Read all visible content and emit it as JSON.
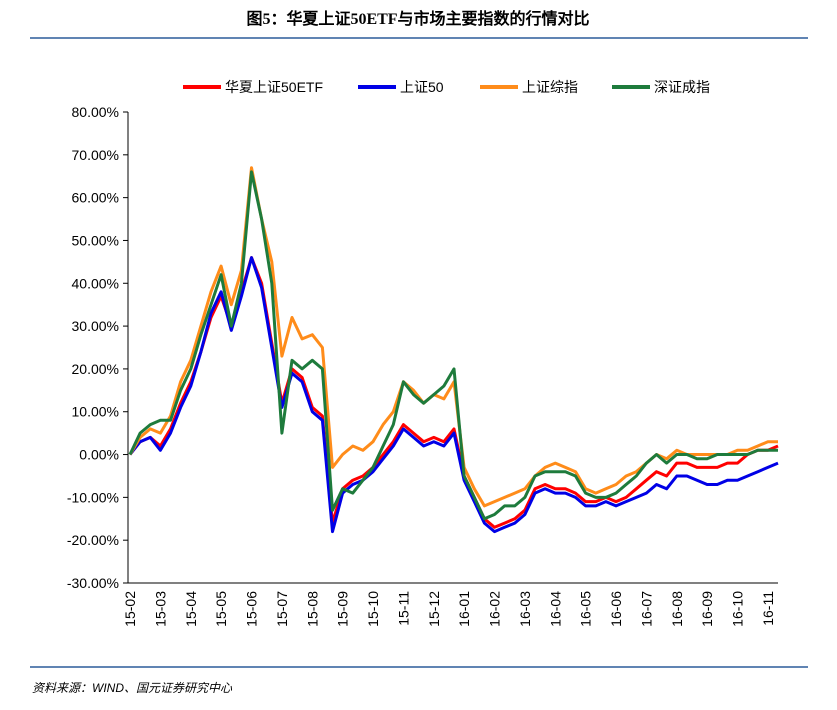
{
  "chart_data": {
    "type": "line",
    "title": "图5：华夏上证50ETF与市场主要指数的行情对比",
    "source": "资料来源：WIND、国元证券研究中心",
    "categories": [
      "15-02",
      null,
      null,
      "15-03",
      null,
      null,
      "15-04",
      null,
      null,
      "15-05",
      null,
      null,
      "15-06",
      null,
      null,
      "15-07",
      null,
      null,
      "15-08",
      null,
      null,
      "15-09",
      null,
      null,
      "15-10",
      null,
      null,
      "15-11",
      null,
      null,
      "15-12",
      null,
      null,
      "16-01",
      null,
      null,
      "16-02",
      null,
      null,
      "16-03",
      null,
      null,
      "16-04",
      null,
      null,
      "16-05",
      null,
      null,
      "16-06",
      null,
      null,
      "16-07",
      null,
      null,
      "16-08",
      null,
      null,
      "16-09",
      null,
      null,
      "16-10",
      null,
      null,
      "16-11",
      null
    ],
    "series": [
      {
        "name": "华夏上证50ETF",
        "color": "#ff0000",
        "values": [
          0,
          3,
          4,
          2,
          6,
          12,
          17,
          24,
          32,
          37,
          30,
          38,
          46,
          40,
          26,
          12,
          20,
          18,
          11,
          9,
          -16,
          -8,
          -6,
          -5,
          -3,
          0,
          3,
          7,
          5,
          3,
          4,
          3,
          6,
          -5,
          -10,
          -15,
          -17,
          -16,
          -15,
          -13,
          -8,
          -7,
          -8,
          -8,
          -9,
          -11,
          -11,
          -10,
          -11,
          -10,
          -8,
          -6,
          -4,
          -5,
          -2,
          -2,
          -3,
          -3,
          -3,
          -2,
          -2,
          0,
          1,
          1,
          2
        ]
      },
      {
        "name": "上证50",
        "color": "#0000e6",
        "values": [
          0,
          3,
          4,
          1,
          5,
          11,
          16,
          24,
          33,
          38,
          29,
          37,
          46,
          39,
          25,
          11,
          19,
          17,
          10,
          8,
          -18,
          -9,
          -7,
          -6,
          -4,
          -1,
          2,
          6,
          4,
          2,
          3,
          2,
          5,
          -6,
          -11,
          -16,
          -18,
          -17,
          -16,
          -14,
          -9,
          -8,
          -9,
          -9,
          -10,
          -12,
          -12,
          -11,
          -12,
          -11,
          -10,
          -9,
          -7,
          -8,
          -5,
          -5,
          -6,
          -7,
          -7,
          -6,
          -6,
          -5,
          -4,
          -3,
          -2
        ]
      },
      {
        "name": "上证综指",
        "color": "#ff8c1a",
        "values": [
          0,
          4,
          6,
          5,
          9,
          17,
          22,
          30,
          38,
          44,
          35,
          43,
          67,
          55,
          45,
          23,
          32,
          27,
          28,
          25,
          -3,
          0,
          2,
          1,
          3,
          7,
          10,
          17,
          15,
          12,
          14,
          13,
          17,
          -3,
          -8,
          -12,
          -11,
          -10,
          -9,
          -8,
          -5,
          -3,
          -2,
          -3,
          -4,
          -8,
          -9,
          -8,
          -7,
          -5,
          -4,
          -2,
          0,
          -1,
          1,
          0,
          0,
          0,
          0,
          0,
          1,
          1,
          2,
          3,
          3
        ]
      },
      {
        "name": "深证成指",
        "color": "#1e7b3c",
        "values": [
          0,
          5,
          7,
          8,
          8,
          15,
          20,
          28,
          35,
          42,
          30,
          40,
          66,
          55,
          40,
          5,
          22,
          20,
          22,
          20,
          -13,
          -8,
          -9,
          -6,
          -3,
          2,
          7,
          17,
          14,
          12,
          14,
          16,
          20,
          -5,
          -10,
          -15,
          -14,
          -12,
          -12,
          -10,
          -5,
          -4,
          -4,
          -4,
          -5,
          -9,
          -10,
          -10,
          -9,
          -7,
          -5,
          -2,
          0,
          -2,
          0,
          0,
          -1,
          -1,
          0,
          0,
          0,
          0,
          1,
          1,
          1
        ]
      }
    ],
    "ylim": [
      -30,
      80
    ],
    "yticks": [
      {
        "value": -30,
        "label": "-30.00%"
      },
      {
        "value": -20,
        "label": "-20.00%"
      },
      {
        "value": -10,
        "label": "-10.00%"
      },
      {
        "value": 0,
        "label": "0.00%"
      },
      {
        "value": 10,
        "label": "10.00%"
      },
      {
        "value": 20,
        "label": "20.00%"
      },
      {
        "value": 30,
        "label": "30.00%"
      },
      {
        "value": 40,
        "label": "40.00%"
      },
      {
        "value": 50,
        "label": "50.00%"
      },
      {
        "value": 60,
        "label": "60.00%"
      },
      {
        "value": 70,
        "label": "70.00%"
      },
      {
        "value": 80,
        "label": "80.00%"
      }
    ],
    "grid": false,
    "legend": "top"
  }
}
